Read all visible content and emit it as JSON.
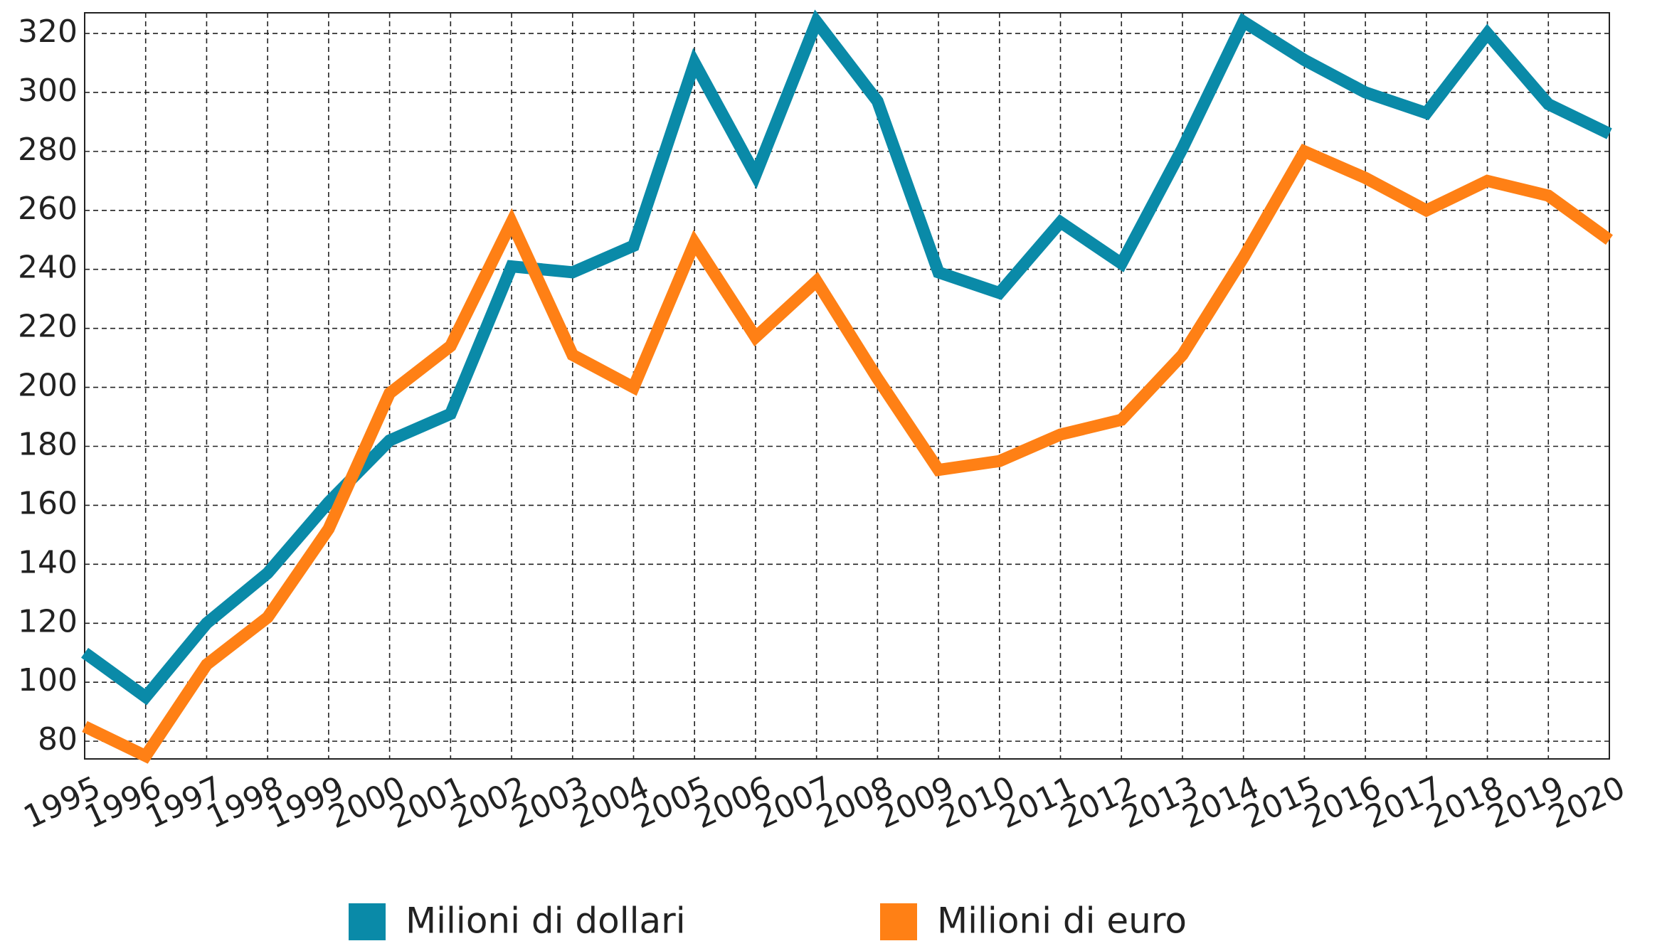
{
  "chart_data": {
    "type": "line",
    "categories": [
      "1995",
      "1996",
      "1997",
      "1998",
      "1999",
      "2000",
      "2001",
      "2002",
      "2003",
      "2004",
      "2005",
      "2006",
      "2007",
      "2008",
      "2009",
      "2010",
      "2011",
      "2012",
      "2013",
      "2014",
      "2015",
      "2016",
      "2017",
      "2018",
      "2019",
      "2020"
    ],
    "series": [
      {
        "name": "Milioni di dollari",
        "color": "#0a8aa8",
        "values": [
          110,
          95,
          120,
          137,
          161,
          182,
          191,
          241,
          239,
          248,
          310,
          272,
          324,
          297,
          239,
          232,
          256,
          242,
          281,
          324,
          311,
          300,
          293,
          320,
          296,
          286
        ]
      },
      {
        "name": "Milioni di euro",
        "color": "#ff8015",
        "values": [
          85,
          75,
          106,
          122,
          152,
          198,
          214,
          256,
          211,
          200,
          249,
          217,
          236,
          203,
          172,
          175,
          184,
          189,
          211,
          244,
          280,
          271,
          260,
          270,
          265,
          250
        ]
      }
    ],
    "ylim": [
      74,
      327
    ],
    "yticks": [
      80,
      100,
      120,
      140,
      160,
      180,
      200,
      220,
      240,
      260,
      280,
      300,
      320
    ],
    "grid": true,
    "legend": "bottom"
  }
}
